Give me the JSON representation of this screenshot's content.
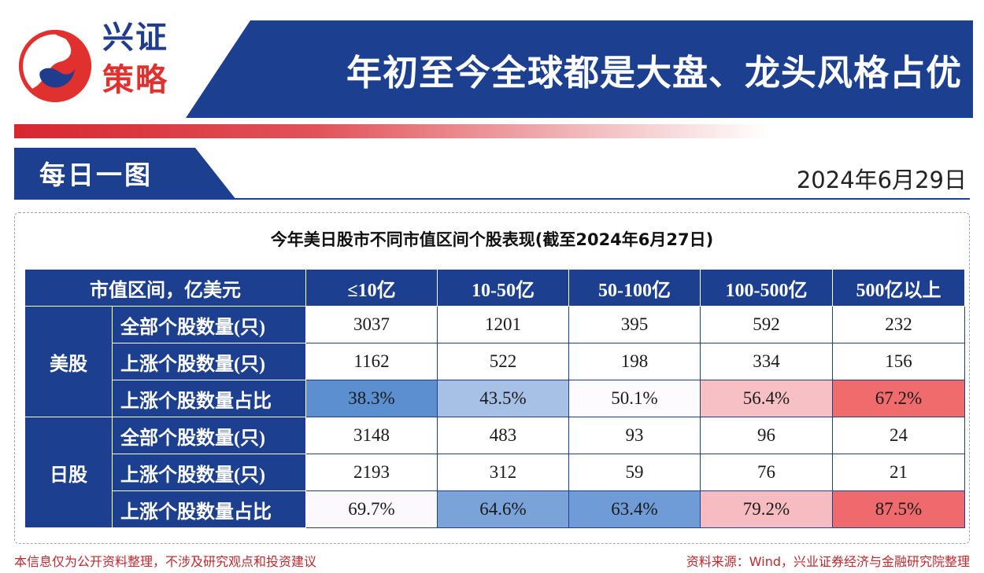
{
  "brand": {
    "line1": "兴证",
    "line2": "策略"
  },
  "banner": {
    "title": "年初至今全球都是大盘、龙头风格占优"
  },
  "section": {
    "title": "每日一图",
    "date": "2024年6月29日"
  },
  "table": {
    "title": "今年美日股市不同市值区间个股表现(截至2024年6月27日)",
    "corner_header": "市值区间，亿美元",
    "columns": [
      "≤10亿",
      "10-50亿",
      "50-100亿",
      "100-500亿",
      "500亿以上"
    ],
    "groups": [
      {
        "market": "美股",
        "rows": [
          {
            "label": "全部个股数量(只)",
            "values": [
              "3037",
              "1201",
              "395",
              "592",
              "232"
            ]
          },
          {
            "label": "上涨个股数量(只)",
            "values": [
              "1162",
              "522",
              "198",
              "334",
              "156"
            ]
          },
          {
            "label": "上涨个股数量占比",
            "values": [
              "38.3%",
              "43.5%",
              "50.1%",
              "56.4%",
              "67.2%"
            ],
            "colors": [
              "#5b8fd0",
              "#a7c1e6",
              "#fdfbfd",
              "#f6c0c5",
              "#ef6b6c"
            ]
          }
        ]
      },
      {
        "market": "日股",
        "rows": [
          {
            "label": "全部个股数量(只)",
            "values": [
              "3148",
              "483",
              "93",
              "96",
              "24"
            ]
          },
          {
            "label": "上涨个股数量(只)",
            "values": [
              "2193",
              "312",
              "59",
              "76",
              "21"
            ]
          },
          {
            "label": "上涨个股数量占比",
            "values": [
              "69.7%",
              "64.6%",
              "63.4%",
              "79.2%",
              "87.5%"
            ],
            "colors": [
              "#fcf9fc",
              "#7aa3da",
              "#6f9bd6",
              "#f6bcc2",
              "#ee6a6c"
            ]
          }
        ]
      }
    ]
  },
  "footer": {
    "disclaimer": "本信息仅为公开资料整理，不涉及研究观点和投资建议",
    "source": "资料来源：Wind，兴业证券经济与金融研究院整理"
  },
  "colors": {
    "navy": "#1d3f8f",
    "red": "#e0312f"
  }
}
